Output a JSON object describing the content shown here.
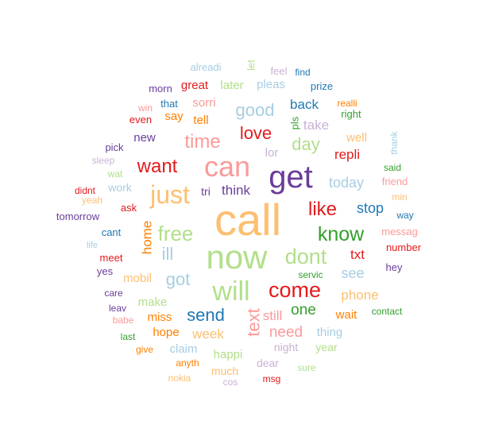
{
  "palette": {
    "lightblue": "#a6cee3",
    "blue": "#1f78b4",
    "lightgreen": "#b2df8a",
    "green": "#33a02c",
    "pink": "#fb9a99",
    "red": "#e31a1c",
    "lightorange": "#fdbf6f",
    "orange": "#ff7f00",
    "lavender": "#cab2d6",
    "purple": "#6a3d9a"
  },
  "words": [
    {
      "text": "call",
      "color": "lightorange"
    },
    {
      "text": "now",
      "color": "lightgreen"
    },
    {
      "text": "get",
      "color": "purple"
    },
    {
      "text": "can",
      "color": "pink"
    },
    {
      "text": "just",
      "color": "lightorange"
    },
    {
      "text": "will",
      "color": "lightgreen"
    },
    {
      "text": "come",
      "color": "red"
    },
    {
      "text": "dont",
      "color": "lightgreen"
    },
    {
      "text": "free",
      "color": "lightgreen"
    },
    {
      "text": "know",
      "color": "green"
    },
    {
      "text": "like",
      "color": "red"
    },
    {
      "text": "want",
      "color": "red"
    },
    {
      "text": "time",
      "color": "pink"
    },
    {
      "text": "love",
      "color": "red"
    },
    {
      "text": "good",
      "color": "lightblue"
    },
    {
      "text": "day",
      "color": "lightgreen"
    },
    {
      "text": "text",
      "color": "pink"
    },
    {
      "text": "send",
      "color": "blue"
    },
    {
      "text": "got",
      "color": "lightblue"
    },
    {
      "text": "ill",
      "color": "lightblue"
    },
    {
      "text": "home",
      "color": "orange"
    },
    {
      "text": "one",
      "color": "green"
    },
    {
      "text": "need",
      "color": "pink"
    },
    {
      "text": "stop",
      "color": "blue"
    },
    {
      "text": "today",
      "color": "lightblue"
    },
    {
      "text": "see",
      "color": "lightblue"
    },
    {
      "text": "phone",
      "color": "lightorange"
    },
    {
      "text": "txt",
      "color": "red"
    },
    {
      "text": "repli",
      "color": "red"
    },
    {
      "text": "think",
      "color": "purple"
    },
    {
      "text": "back",
      "color": "blue"
    },
    {
      "text": "take",
      "color": "lavender"
    },
    {
      "text": "week",
      "color": "lightorange"
    },
    {
      "text": "mobil",
      "color": "lightorange"
    },
    {
      "text": "make",
      "color": "lightgreen"
    },
    {
      "text": "still",
      "color": "pink"
    },
    {
      "text": "pleas",
      "color": "lightblue"
    },
    {
      "text": "sorri",
      "color": "pink"
    },
    {
      "text": "great",
      "color": "red"
    },
    {
      "text": "later",
      "color": "lightgreen"
    },
    {
      "text": "alreadi",
      "color": "lightblue"
    },
    {
      "text": "let",
      "color": "lightgreen"
    },
    {
      "text": "feel",
      "color": "lavender"
    },
    {
      "text": "find",
      "color": "blue"
    },
    {
      "text": "prize",
      "color": "blue"
    },
    {
      "text": "morn",
      "color": "purple"
    },
    {
      "text": "that",
      "color": "blue"
    },
    {
      "text": "win",
      "color": "pink"
    },
    {
      "text": "even",
      "color": "red"
    },
    {
      "text": "say",
      "color": "orange"
    },
    {
      "text": "tell",
      "color": "orange"
    },
    {
      "text": "pls",
      "color": "green"
    },
    {
      "text": "realli",
      "color": "orange"
    },
    {
      "text": "right",
      "color": "green"
    },
    {
      "text": "new",
      "color": "purple"
    },
    {
      "text": "lor",
      "color": "lavender"
    },
    {
      "text": "well",
      "color": "lightorange"
    },
    {
      "text": "thank",
      "color": "lightblue"
    },
    {
      "text": "pick",
      "color": "purple"
    },
    {
      "text": "sleep",
      "color": "lavender"
    },
    {
      "text": "wat",
      "color": "lightgreen"
    },
    {
      "text": "said",
      "color": "green"
    },
    {
      "text": "friend",
      "color": "pink"
    },
    {
      "text": "didnt",
      "color": "red"
    },
    {
      "text": "work",
      "color": "lightblue"
    },
    {
      "text": "tri",
      "color": "purple"
    },
    {
      "text": "yeah",
      "color": "lightorange"
    },
    {
      "text": "min",
      "color": "lightorange"
    },
    {
      "text": "ask",
      "color": "red"
    },
    {
      "text": "way",
      "color": "blue"
    },
    {
      "text": "tomorrow",
      "color": "purple"
    },
    {
      "text": "cant",
      "color": "blue"
    },
    {
      "text": "messag",
      "color": "pink"
    },
    {
      "text": "life",
      "color": "lightblue"
    },
    {
      "text": "number",
      "color": "red"
    },
    {
      "text": "meet",
      "color": "red"
    },
    {
      "text": "hey",
      "color": "purple"
    },
    {
      "text": "yes",
      "color": "purple"
    },
    {
      "text": "servic",
      "color": "green"
    },
    {
      "text": "care",
      "color": "purple"
    },
    {
      "text": "leav",
      "color": "purple"
    },
    {
      "text": "miss",
      "color": "orange"
    },
    {
      "text": "wait",
      "color": "orange"
    },
    {
      "text": "contact",
      "color": "green"
    },
    {
      "text": "babe",
      "color": "pink"
    },
    {
      "text": "hope",
      "color": "orange"
    },
    {
      "text": "thing",
      "color": "lightblue"
    },
    {
      "text": "last",
      "color": "green"
    },
    {
      "text": "give",
      "color": "orange"
    },
    {
      "text": "claim",
      "color": "lightblue"
    },
    {
      "text": "year",
      "color": "lightgreen"
    },
    {
      "text": "happi",
      "color": "lightgreen"
    },
    {
      "text": "night",
      "color": "lavender"
    },
    {
      "text": "dear",
      "color": "lavender"
    },
    {
      "text": "anyth",
      "color": "orange"
    },
    {
      "text": "much",
      "color": "lightorange"
    },
    {
      "text": "sure",
      "color": "lightgreen"
    },
    {
      "text": "msg",
      "color": "red"
    },
    {
      "text": "nokia",
      "color": "lightorange"
    },
    {
      "text": "cos",
      "color": "lavender"
    }
  ]
}
